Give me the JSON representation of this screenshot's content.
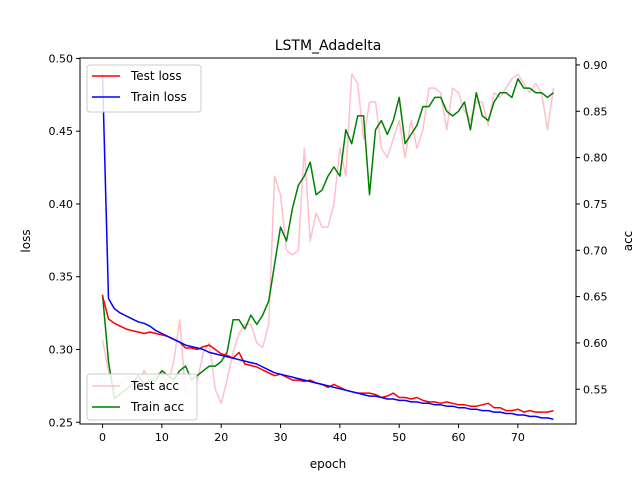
{
  "chart_data": {
    "type": "line",
    "title": "LSTM_Adadelta",
    "xlabel": "epoch",
    "ylabel": "loss",
    "y2label": "acc",
    "xlim": [
      -3.8,
      79.8
    ],
    "ylim": [
      0.2488,
      0.5003
    ],
    "y2lim": [
      0.5125,
      0.9075
    ],
    "xticks": [
      0,
      10,
      20,
      30,
      40,
      50,
      60,
      70
    ],
    "yticks": [
      "0.25",
      "0.30",
      "0.35",
      "0.40",
      "0.45",
      "0.50"
    ],
    "y2ticks": [
      "0.55",
      "0.60",
      "0.65",
      "0.70",
      "0.75",
      "0.80",
      "0.85",
      "0.90"
    ],
    "grid": false,
    "legend_loss_position": "upper-left",
    "legend_acc_position": "lower-left",
    "x": [
      0,
      1,
      2,
      3,
      4,
      5,
      6,
      7,
      8,
      9,
      10,
      11,
      12,
      13,
      14,
      15,
      16,
      17,
      18,
      19,
      20,
      21,
      22,
      23,
      24,
      25,
      26,
      27,
      28,
      29,
      30,
      31,
      32,
      33,
      34,
      35,
      36,
      37,
      38,
      39,
      40,
      41,
      42,
      43,
      44,
      45,
      46,
      47,
      48,
      49,
      50,
      51,
      52,
      53,
      54,
      55,
      56,
      57,
      58,
      59,
      60,
      61,
      62,
      63,
      64,
      65,
      66,
      67,
      68,
      69,
      70,
      71,
      72,
      73,
      74,
      75,
      76
    ],
    "series": [
      {
        "name": "Test loss",
        "axis": "loss",
        "color": "#ff0000",
        "values": [
          0.337,
          0.321,
          0.318,
          0.316,
          0.314,
          0.313,
          0.312,
          0.311,
          0.312,
          0.311,
          0.31,
          0.309,
          0.307,
          0.305,
          0.301,
          0.301,
          0.3,
          0.302,
          0.303,
          0.3,
          0.297,
          0.296,
          0.294,
          0.298,
          0.29,
          0.289,
          0.288,
          0.286,
          0.284,
          0.282,
          0.283,
          0.281,
          0.279,
          0.279,
          0.278,
          0.279,
          0.277,
          0.276,
          0.274,
          0.276,
          0.274,
          0.272,
          0.271,
          0.27,
          0.27,
          0.27,
          0.269,
          0.267,
          0.268,
          0.27,
          0.267,
          0.267,
          0.266,
          0.267,
          0.265,
          0.264,
          0.264,
          0.263,
          0.264,
          0.263,
          0.262,
          0.262,
          0.261,
          0.261,
          0.262,
          0.263,
          0.26,
          0.26,
          0.258,
          0.258,
          0.259,
          0.257,
          0.258,
          0.257,
          0.257,
          0.257,
          0.258
        ]
      },
      {
        "name": "Train loss",
        "axis": "loss",
        "color": "#0000ff",
        "values": [
          0.489,
          0.335,
          0.328,
          0.325,
          0.323,
          0.321,
          0.319,
          0.318,
          0.316,
          0.313,
          0.311,
          0.309,
          0.307,
          0.305,
          0.303,
          0.302,
          0.301,
          0.3,
          0.298,
          0.297,
          0.296,
          0.295,
          0.294,
          0.293,
          0.292,
          0.291,
          0.29,
          0.288,
          0.286,
          0.284,
          0.283,
          0.282,
          0.281,
          0.28,
          0.279,
          0.278,
          0.277,
          0.276,
          0.275,
          0.274,
          0.273,
          0.272,
          0.271,
          0.27,
          0.269,
          0.268,
          0.268,
          0.267,
          0.266,
          0.266,
          0.265,
          0.265,
          0.264,
          0.264,
          0.263,
          0.263,
          0.262,
          0.262,
          0.261,
          0.261,
          0.26,
          0.26,
          0.259,
          0.259,
          0.258,
          0.258,
          0.257,
          0.257,
          0.256,
          0.256,
          0.255,
          0.255,
          0.254,
          0.254,
          0.253,
          0.253,
          0.252
        ]
      },
      {
        "name": "Test acc",
        "axis": "acc",
        "color": "#ffc0cb",
        "values": [
          0.603,
          0.57,
          0.55,
          0.555,
          0.565,
          0.55,
          0.555,
          0.57,
          0.56,
          0.565,
          0.57,
          0.555,
          0.58,
          0.625,
          0.545,
          0.55,
          0.56,
          0.59,
          0.6,
          0.55,
          0.535,
          0.56,
          0.59,
          0.61,
          0.62,
          0.62,
          0.6,
          0.595,
          0.62,
          0.78,
          0.76,
          0.7,
          0.695,
          0.7,
          0.81,
          0.71,
          0.74,
          0.725,
          0.725,
          0.75,
          0.81,
          0.78,
          0.89,
          0.88,
          0.82,
          0.86,
          0.86,
          0.81,
          0.8,
          0.82,
          0.84,
          0.8,
          0.84,
          0.81,
          0.83,
          0.875,
          0.875,
          0.87,
          0.83,
          0.875,
          0.87,
          0.85,
          0.84,
          0.86,
          0.86,
          0.835,
          0.87,
          0.865,
          0.875,
          0.885,
          0.89,
          0.88,
          0.87,
          0.88,
          0.87,
          0.83,
          0.875
        ]
      },
      {
        "name": "Train acc",
        "axis": "acc",
        "color": "#008000",
        "values": [
          0.652,
          0.58,
          0.54,
          0.545,
          0.55,
          0.555,
          0.565,
          0.555,
          0.56,
          0.56,
          0.57,
          0.565,
          0.56,
          0.57,
          0.575,
          0.56,
          0.565,
          0.57,
          0.575,
          0.575,
          0.58,
          0.59,
          0.625,
          0.625,
          0.615,
          0.63,
          0.62,
          0.63,
          0.645,
          0.685,
          0.725,
          0.71,
          0.745,
          0.77,
          0.78,
          0.795,
          0.76,
          0.765,
          0.78,
          0.79,
          0.78,
          0.83,
          0.815,
          0.845,
          0.845,
          0.76,
          0.83,
          0.84,
          0.825,
          0.84,
          0.865,
          0.815,
          0.825,
          0.835,
          0.855,
          0.855,
          0.865,
          0.865,
          0.85,
          0.845,
          0.85,
          0.86,
          0.83,
          0.87,
          0.845,
          0.84,
          0.86,
          0.87,
          0.87,
          0.865,
          0.885,
          0.875,
          0.875,
          0.87,
          0.87,
          0.865,
          0.87
        ]
      }
    ]
  }
}
